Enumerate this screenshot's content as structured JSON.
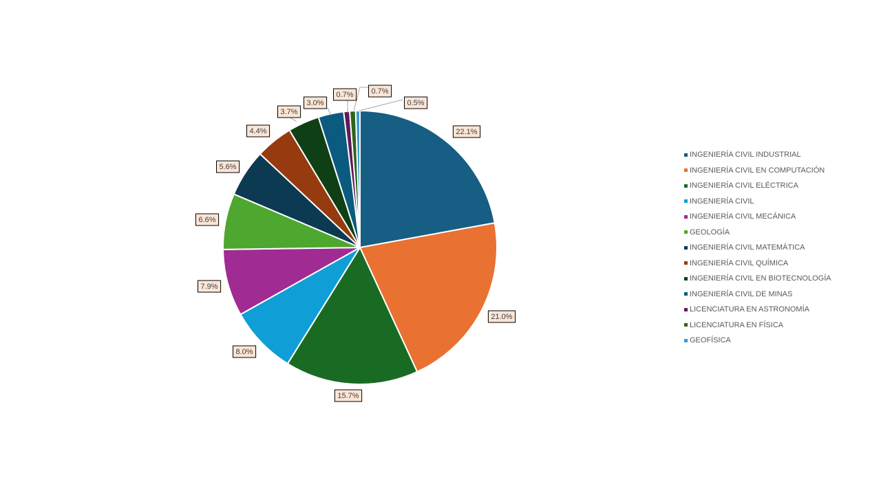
{
  "chart_data": {
    "type": "pie",
    "title": "",
    "legend_position": "right",
    "slices": [
      {
        "label": "INGENIERÍA CIVIL INDUSTRIAL",
        "value": 22.1,
        "display": "22.1%",
        "color": "#165e83"
      },
      {
        "label": "INGENIERÍA CIVIL EN COMPUTACIÓN",
        "value": 21.0,
        "display": "21.0%",
        "color": "#e97132"
      },
      {
        "label": "INGENIERÍA CIVIL ELÉCTRICA",
        "value": 15.7,
        "display": "15.7%",
        "color": "#196b24"
      },
      {
        "label": "INGENIERÍA CIVIL",
        "value": 8.0,
        "display": "8.0%",
        "color": "#0f9ed5"
      },
      {
        "label": "INGENIERÍA CIVIL MECÁNICA",
        "value": 7.9,
        "display": "7.9%",
        "color": "#a02b93"
      },
      {
        "label": "GEOLOGÍA",
        "value": 6.6,
        "display": "6.6%",
        "color": "#4ea72e"
      },
      {
        "label": "INGENIERÍA CIVIL MATEMÁTICA",
        "value": 5.6,
        "display": "5.6%",
        "color": "#0c3a52"
      },
      {
        "label": "INGENIERÍA CIVIL QUÍMICA",
        "value": 4.4,
        "display": "4.4%",
        "color": "#963b10"
      },
      {
        "label": "INGENIERÍA CIVIL EN BIOTECNOLOGÍA",
        "value": 3.7,
        "display": "3.7%",
        "color": "#0f3f15"
      },
      {
        "label": "INGENIERÍA CIVIL DE MINAS",
        "value": 3.0,
        "display": "3.0%",
        "color": "#0b5a80"
      },
      {
        "label": "LICENCIATURA EN ASTRONOMÍA",
        "value": 0.7,
        "display": "0.7%",
        "color": "#601a58"
      },
      {
        "label": "LICENCIATURA EN FÍSICA",
        "value": 0.7,
        "display": "0.7%",
        "color": "#2f641b"
      },
      {
        "label": "GEOFÍSICA",
        "value": 0.5,
        "display": "0.5%",
        "color": "#3c9ad1"
      }
    ]
  }
}
